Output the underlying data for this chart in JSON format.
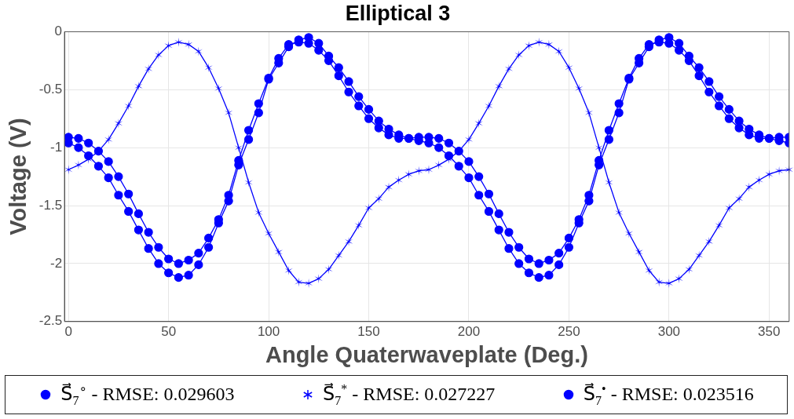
{
  "chart_data": {
    "type": "line",
    "title": "Elliptical 3",
    "xlabel": "Angle Quaterwaveplate (Deg.)",
    "ylabel": "Voltage (V)",
    "x": [
      0,
      5,
      10,
      15,
      20,
      25,
      30,
      35,
      40,
      45,
      50,
      55,
      60,
      65,
      70,
      75,
      80,
      85,
      90,
      95,
      100,
      105,
      110,
      115,
      120,
      125,
      130,
      135,
      140,
      145,
      150,
      155,
      160,
      165,
      170,
      175,
      180,
      185,
      190,
      195,
      200,
      205,
      210,
      215,
      220,
      225,
      230,
      235,
      240,
      245,
      250,
      255,
      260,
      265,
      270,
      275,
      280,
      285,
      290,
      295,
      300,
      305,
      310,
      315,
      320,
      325,
      330,
      335,
      340,
      345,
      350,
      355,
      360
    ],
    "xlim": [
      -2,
      360
    ],
    "xticks": [
      0,
      50,
      100,
      150,
      200,
      250,
      300,
      350
    ],
    "ylim": [
      -2.5,
      0
    ],
    "yticks": [
      -2.5,
      -2,
      -1.5,
      -1,
      -0.5,
      0
    ],
    "grid": true,
    "legend": "bottom",
    "line_style": "solid",
    "series": [
      {
        "name": "S⃗$_{7}$$^{∘}$ - RMSE: 0.029603",
        "color": "#0000ff",
        "marker": "circle",
        "values": [
          -0.91,
          -0.92,
          -0.96,
          -1.03,
          -1.12,
          -1.25,
          -1.4,
          -1.57,
          -1.73,
          -1.86,
          -1.96,
          -2.0,
          -1.97,
          -1.91,
          -1.78,
          -1.62,
          -1.41,
          -1.11,
          -0.85,
          -0.62,
          -0.4,
          -0.23,
          -0.11,
          -0.09,
          -0.1,
          -0.16,
          -0.25,
          -0.38,
          -0.52,
          -0.64,
          -0.75,
          -0.83,
          -0.89,
          -0.92,
          -0.92,
          -0.91,
          -0.91,
          -0.92,
          -0.96,
          -1.03,
          -1.12,
          -1.25,
          -1.4,
          -1.57,
          -1.73,
          -1.86,
          -1.96,
          -2.0,
          -1.97,
          -1.91,
          -1.78,
          -1.62,
          -1.41,
          -1.11,
          -0.85,
          -0.62,
          -0.4,
          -0.23,
          -0.11,
          -0.09,
          -0.1,
          -0.16,
          -0.25,
          -0.38,
          -0.52,
          -0.64,
          -0.75,
          -0.83,
          -0.89,
          -0.92,
          -0.92,
          -0.91,
          -0.91
        ]
      },
      {
        "name": "S⃗$_{7}$$^{*}$ - RMSE: 0.027227",
        "color": "#0000ff",
        "marker": "cross",
        "values": [
          -1.19,
          -1.15,
          -1.1,
          -1.03,
          -0.93,
          -0.79,
          -0.64,
          -0.47,
          -0.32,
          -0.2,
          -0.12,
          -0.09,
          -0.11,
          -0.17,
          -0.31,
          -0.49,
          -0.7,
          -1.0,
          -1.3,
          -1.56,
          -1.74,
          -1.9,
          -2.06,
          -2.16,
          -2.17,
          -2.13,
          -2.05,
          -1.93,
          -1.81,
          -1.67,
          -1.52,
          -1.44,
          -1.34,
          -1.28,
          -1.23,
          -1.2,
          -1.19,
          -1.15,
          -1.1,
          -1.03,
          -0.93,
          -0.79,
          -0.64,
          -0.47,
          -0.32,
          -0.2,
          -0.12,
          -0.09,
          -0.11,
          -0.17,
          -0.31,
          -0.49,
          -0.7,
          -1.0,
          -1.3,
          -1.56,
          -1.74,
          -1.9,
          -2.06,
          -2.16,
          -2.17,
          -2.13,
          -2.05,
          -1.93,
          -1.81,
          -1.67,
          -1.52,
          -1.44,
          -1.34,
          -1.28,
          -1.23,
          -1.2,
          -1.19
        ]
      },
      {
        "name": "S⃗$_{7}$$^{•}$ - RMSE: 0.023516",
        "color": "#0000ff",
        "marker": "circle",
        "values": [
          -0.96,
          -1.0,
          -1.07,
          -1.16,
          -1.26,
          -1.41,
          -1.55,
          -1.71,
          -1.87,
          -2.0,
          -2.08,
          -2.12,
          -2.1,
          -2.01,
          -1.86,
          -1.65,
          -1.46,
          -1.15,
          -0.93,
          -0.7,
          -0.41,
          -0.27,
          -0.13,
          -0.07,
          -0.05,
          -0.1,
          -0.21,
          -0.31,
          -0.43,
          -0.56,
          -0.67,
          -0.77,
          -0.84,
          -0.89,
          -0.92,
          -0.94,
          -0.96,
          -1.0,
          -1.07,
          -1.16,
          -1.26,
          -1.41,
          -1.55,
          -1.71,
          -1.87,
          -2.0,
          -2.08,
          -2.12,
          -2.1,
          -2.01,
          -1.86,
          -1.65,
          -1.46,
          -1.15,
          -0.93,
          -0.7,
          -0.41,
          -0.27,
          -0.13,
          -0.07,
          -0.05,
          -0.1,
          -0.21,
          -0.31,
          -0.43,
          -0.56,
          -0.67,
          -0.77,
          -0.84,
          -0.89,
          -0.92,
          -0.94,
          -0.96
        ]
      }
    ]
  }
}
